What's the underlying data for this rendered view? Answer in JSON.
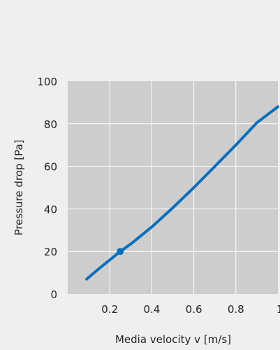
{
  "chart_data": {
    "type": "line",
    "title": "",
    "xlabel": "Media velocity v [m/s]",
    "ylabel": "Pressure drop [Pa]",
    "xlim": [
      0,
      1.0
    ],
    "ylim": [
      0,
      100
    ],
    "xticks": [
      0.2,
      0.4,
      0.6,
      0.8,
      1.0
    ],
    "xtick_labels": [
      "0.2",
      "0.4",
      "0.6",
      "0.8",
      "1"
    ],
    "yticks": [
      0,
      20,
      40,
      60,
      80,
      100
    ],
    "ytick_labels": [
      "0",
      "20",
      "40",
      "60",
      "80",
      "100"
    ],
    "grid": true,
    "series": [
      {
        "x": [
          0.09,
          0.15,
          0.2,
          0.25,
          0.3,
          0.4,
          0.5,
          0.6,
          0.7,
          0.8,
          0.9,
          1.0
        ],
        "y": [
          7,
          12,
          16,
          20,
          23.5,
          31.5,
          40.5,
          50,
          60,
          70,
          80.5,
          88
        ]
      }
    ],
    "markers": [
      {
        "x": 0.25,
        "y": 20
      }
    ],
    "colors": {
      "background": "#efefef",
      "plot_area": "#cdcdcd",
      "grid": "#ffffff",
      "line": "#0a6fbb",
      "text": "#222222"
    }
  }
}
